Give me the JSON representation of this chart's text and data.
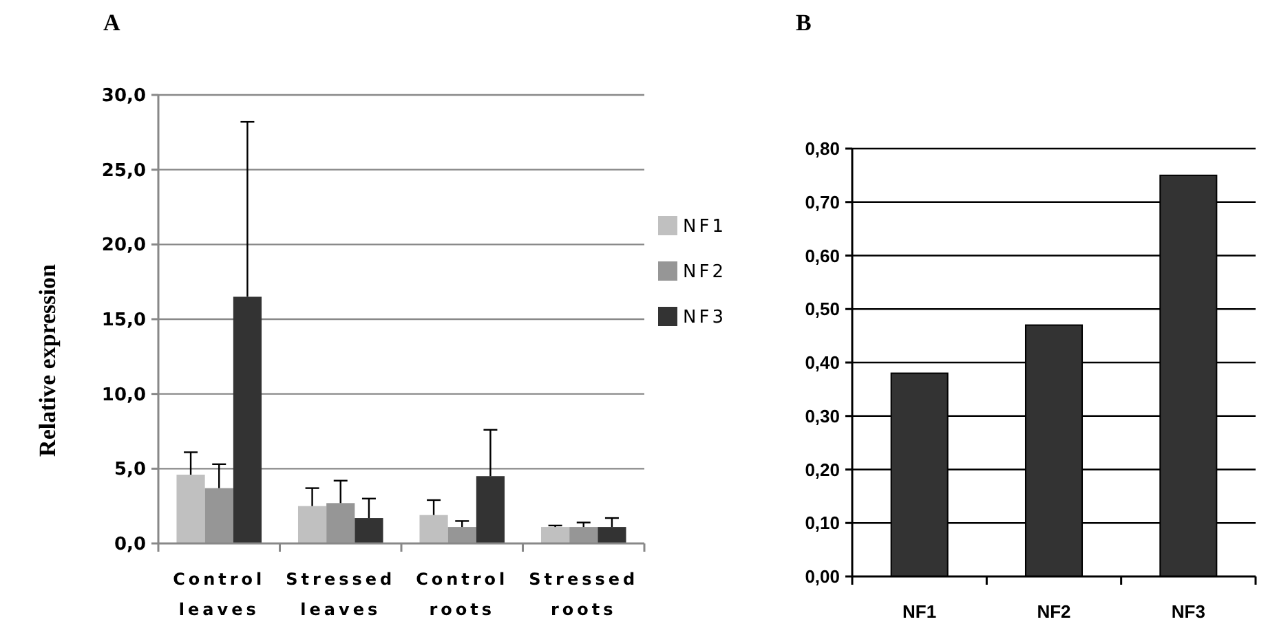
{
  "chart_data": [
    {
      "type": "bar",
      "title": "A",
      "ylabel": "Relative expression",
      "categories": [
        "Control leaves",
        "Stressed leaves",
        "Control roots",
        "Stressed roots"
      ],
      "series": [
        {
          "name": "NF1",
          "color": "#c0c0c0",
          "values": [
            4.6,
            2.5,
            1.9,
            1.1
          ],
          "errors": [
            [
              4.6,
              6.1
            ],
            [
              2.5,
              3.7
            ],
            [
              1.9,
              2.9
            ],
            [
              1.1,
              1.2
            ]
          ]
        },
        {
          "name": "NF2",
          "color": "#969696",
          "values": [
            3.7,
            2.7,
            1.1,
            1.1
          ],
          "errors": [
            [
              3.7,
              5.3
            ],
            [
              2.7,
              4.2
            ],
            [
              1.1,
              1.5
            ],
            [
              1.1,
              1.4
            ]
          ]
        },
        {
          "name": "NF3",
          "color": "#333333",
          "values": [
            16.5,
            1.7,
            4.5,
            1.1
          ],
          "errors": [
            [
              16.5,
              28.2
            ],
            [
              1.7,
              3.0
            ],
            [
              4.5,
              7.6
            ],
            [
              1.1,
              1.7
            ]
          ]
        }
      ],
      "ylim": [
        0,
        30
      ],
      "yticks": [
        {
          "value": 0,
          "label": "0,0"
        },
        {
          "value": 5,
          "label": "5,0"
        },
        {
          "value": 10,
          "label": "10,0"
        },
        {
          "value": 15,
          "label": "15,0"
        },
        {
          "value": 20,
          "label": "20,0"
        },
        {
          "value": 25,
          "label": "25,0"
        },
        {
          "value": 30,
          "label": "30,0"
        }
      ],
      "grid": "y",
      "legend": "right"
    },
    {
      "type": "bar",
      "title": "B",
      "categories": [
        "NF1",
        "NF2",
        "NF3"
      ],
      "values": [
        0.38,
        0.47,
        0.75
      ],
      "color": "#333333",
      "ylim": [
        0,
        0.8
      ],
      "yticks": [
        {
          "value": 0,
          "label": "0,00"
        },
        {
          "value": 0.1,
          "label": "0,10"
        },
        {
          "value": 0.2,
          "label": "0,20"
        },
        {
          "value": 0.3,
          "label": "0,30"
        },
        {
          "value": 0.4,
          "label": "0,40"
        },
        {
          "value": 0.5,
          "label": "0,50"
        },
        {
          "value": 0.6,
          "label": "0,60"
        },
        {
          "value": 0.7,
          "label": "0,70"
        },
        {
          "value": 0.8,
          "label": "0,80"
        }
      ],
      "grid": "y"
    }
  ]
}
